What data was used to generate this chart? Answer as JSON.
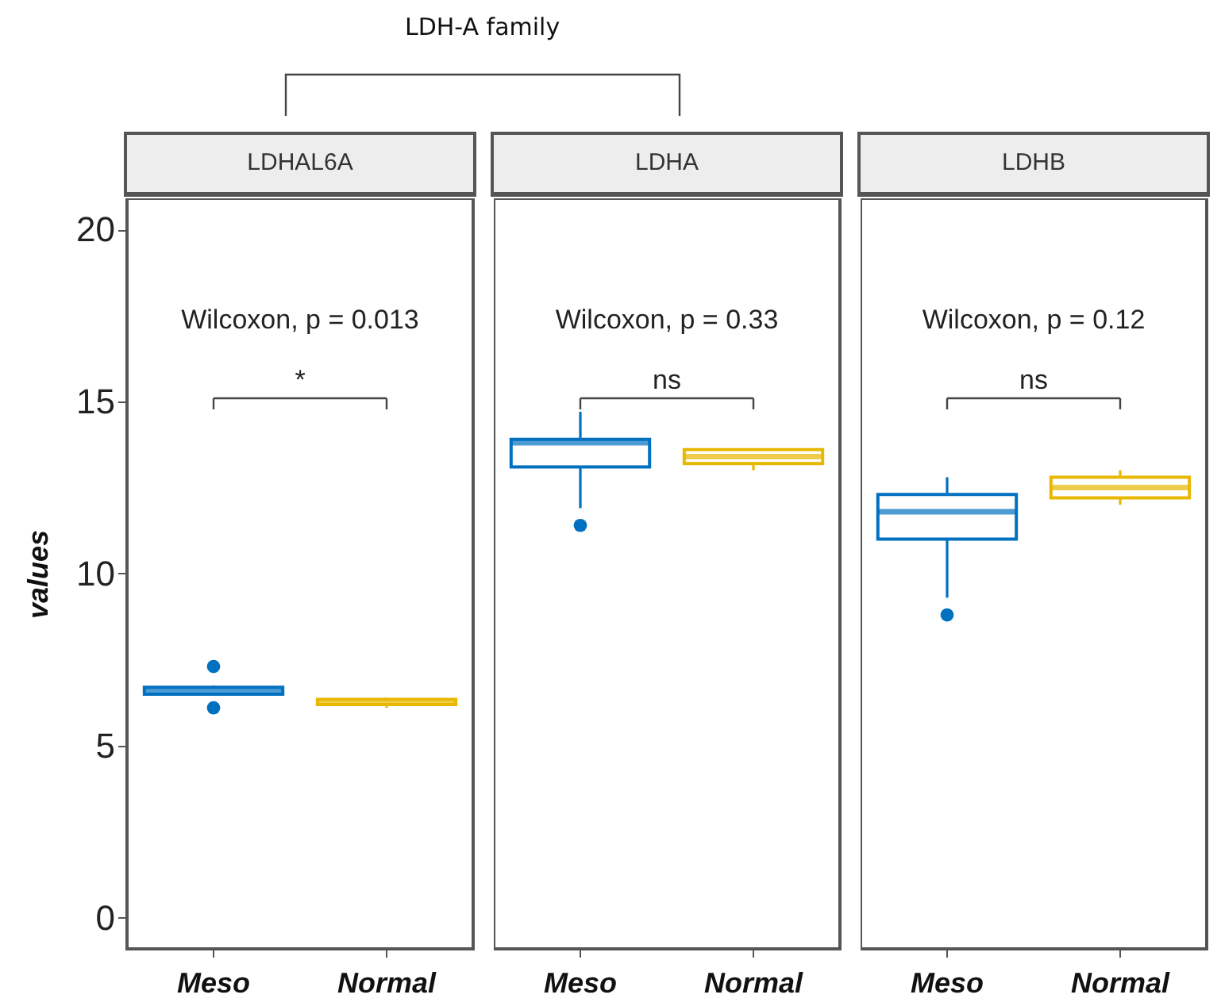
{
  "chart_data": [
    {
      "type": "box",
      "title": "LDHAL6A",
      "ylabel": "values",
      "categories": [
        "Meso",
        "Normal"
      ],
      "colors": [
        "#0070c0",
        "#e8b800"
      ],
      "boxes": [
        {
          "low": 6.45,
          "q1": 6.5,
          "median": 6.6,
          "q3": 6.7,
          "high": 6.75,
          "outliers": [
            7.3,
            6.1
          ]
        },
        {
          "low": 6.1,
          "q1": 6.2,
          "median": 6.25,
          "q3": 6.35,
          "high": 6.4
        }
      ],
      "ylim": [
        -0.9,
        20.9
      ],
      "yticks": [
        0,
        5,
        10,
        15,
        20
      ],
      "annotations": [
        "Wilcoxon, p = 0.013",
        "*",
        "LDH-A family"
      ]
    },
    {
      "type": "box",
      "title": "LDHA",
      "categories": [
        "Meso",
        "Normal"
      ],
      "colors": [
        "#0070c0",
        "#e8b800"
      ],
      "boxes": [
        {
          "low": 11.9,
          "q1": 13.1,
          "median": 13.8,
          "q3": 13.9,
          "high": 14.7,
          "outliers": [
            11.4
          ]
        },
        {
          "low": 13.0,
          "q1": 13.2,
          "median": 13.4,
          "q3": 13.6,
          "high": 13.6
        }
      ],
      "ylim": [
        -0.9,
        20.9
      ],
      "yticks": [
        0,
        5,
        10,
        15,
        20
      ],
      "tick_labels": "x",
      "annotations": [
        "Wilcoxon, p = 0.33",
        "ns"
      ]
    },
    {
      "type": "box",
      "title": "LDHB",
      "categories": [
        "Meso",
        "Normal"
      ],
      "colors": [
        "#0070c0",
        "#e8b800"
      ],
      "boxes": [
        {
          "low": 9.3,
          "q1": 11.0,
          "median": 11.8,
          "q3": 12.3,
          "high": 12.8,
          "outliers": [
            8.8
          ]
        },
        {
          "low": 12.0,
          "q1": 12.2,
          "median": 12.5,
          "q3": 12.8,
          "high": 13.0
        }
      ],
      "ylim": [
        -0.9,
        20.9
      ],
      "yticks": [
        0,
        5,
        10,
        15,
        20
      ],
      "tick_labels": "x",
      "annotations": [
        "Wilcoxon, p = 0.12",
        "ns"
      ]
    }
  ]
}
